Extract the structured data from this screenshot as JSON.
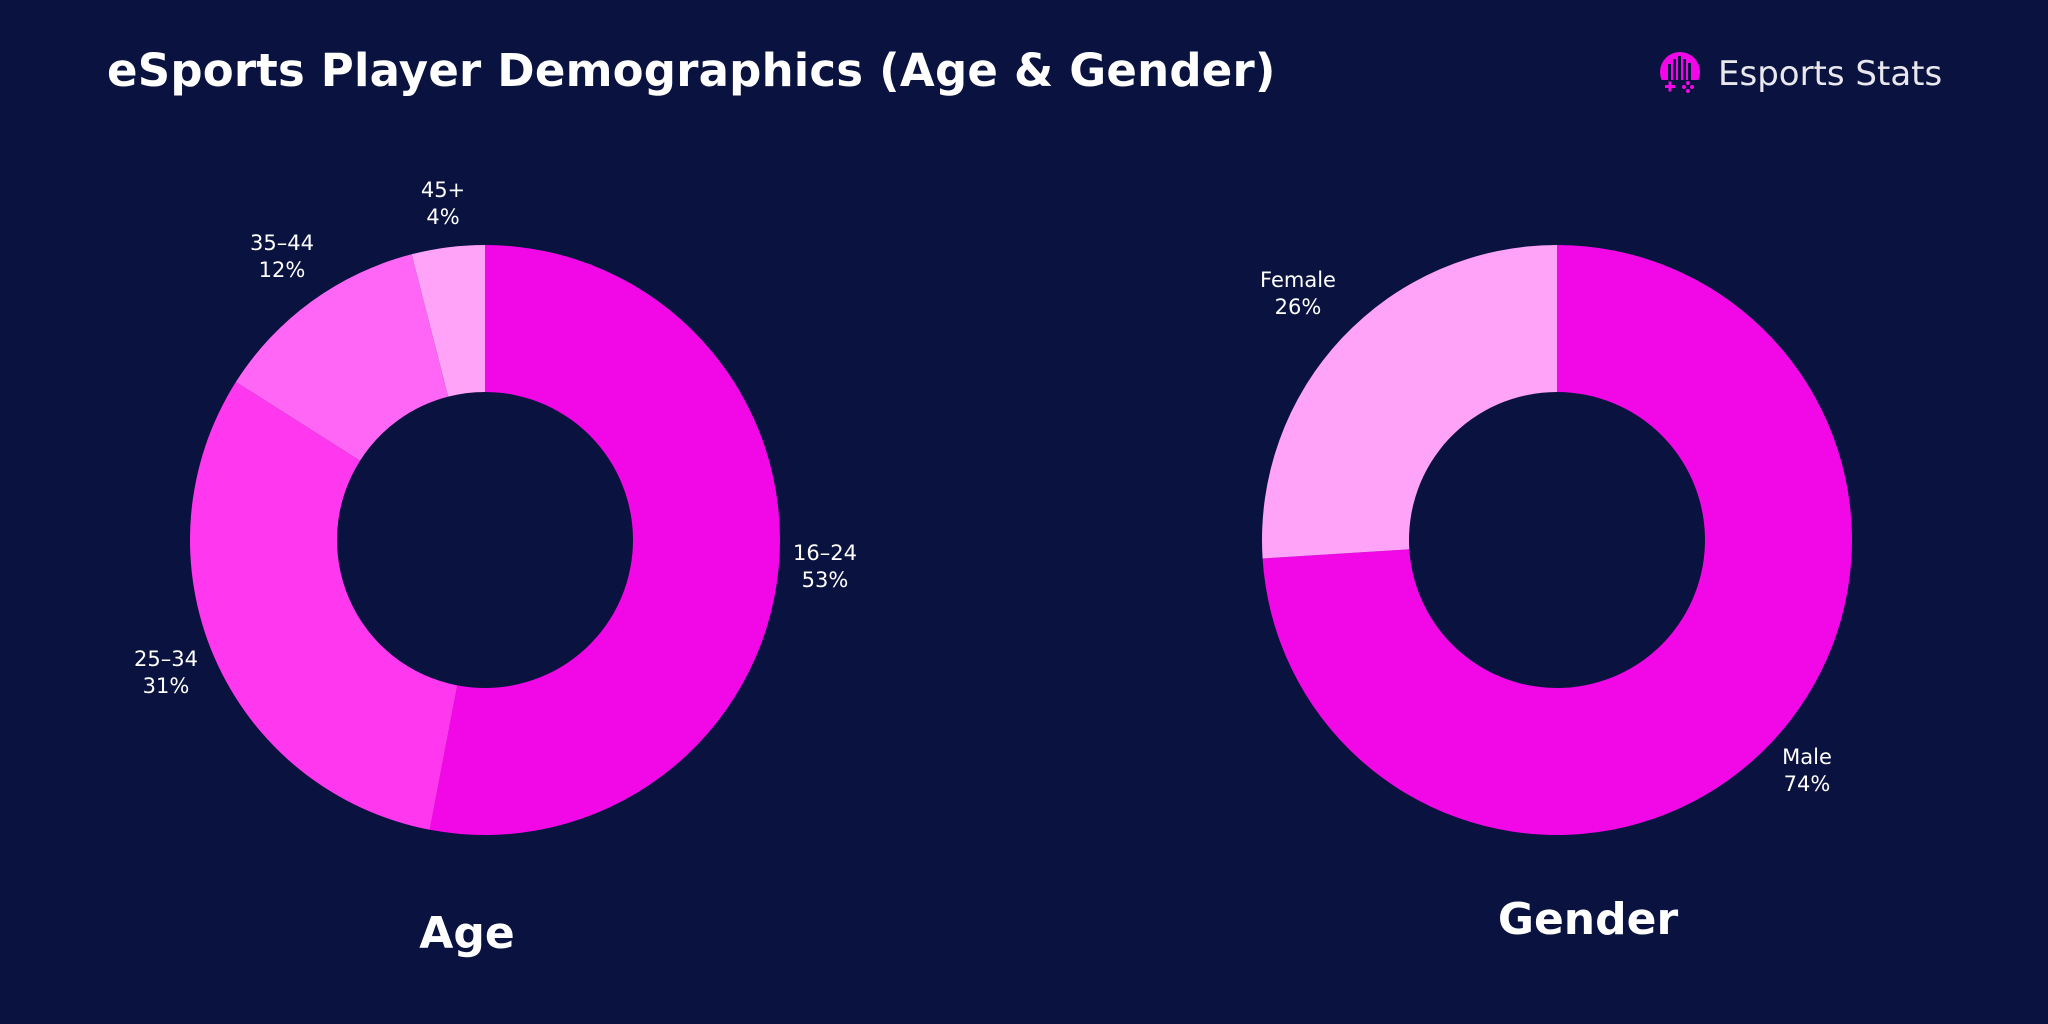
{
  "header": {
    "title": "eSports Player Demographics (Age & Gender)",
    "logo_text": "Esports Stats"
  },
  "colors": {
    "background": "#0A1240",
    "brand": "#F208E6"
  },
  "chart_data": [
    {
      "type": "pie",
      "title": "Age",
      "donut": true,
      "categories": [
        "16–24",
        "25–34",
        "35–44",
        "45+"
      ],
      "values": [
        53,
        31,
        12,
        4
      ],
      "labels": [
        "53%",
        "31%",
        "12%",
        "4%"
      ],
      "colors": [
        "#F208E6",
        "#FF38F0",
        "#FF66F5",
        "#FFA3F8"
      ],
      "start": "top",
      "direction": "clockwise"
    },
    {
      "type": "pie",
      "title": "Gender",
      "donut": true,
      "categories": [
        "Male",
        "Female"
      ],
      "values": [
        74,
        26
      ],
      "labels": [
        "74%",
        "26%"
      ],
      "colors": [
        "#F208E6",
        "#FFA3F8"
      ],
      "start": "top",
      "direction": "clockwise"
    }
  ]
}
